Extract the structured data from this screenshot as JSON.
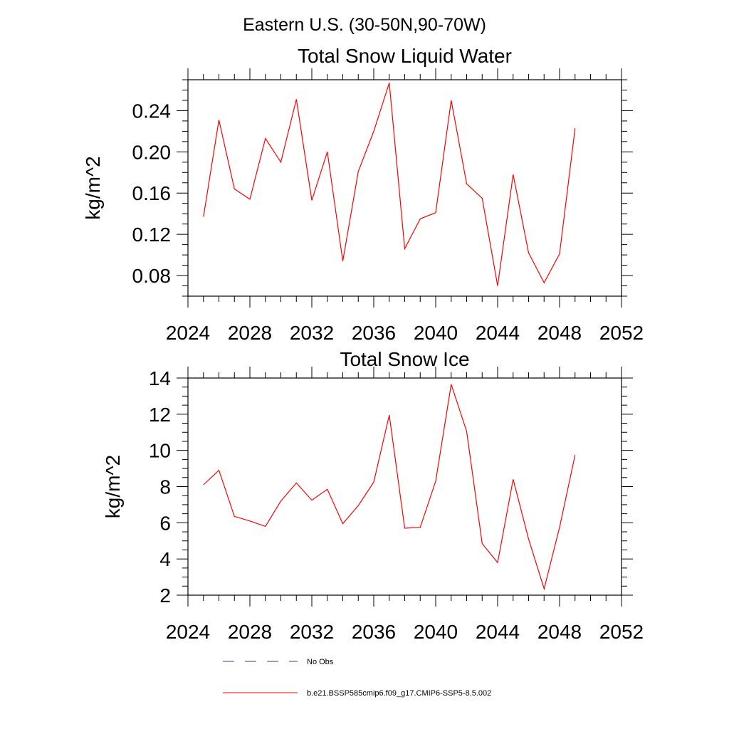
{
  "figure_title": "Eastern U.S. (30-50N,90-70W)",
  "chart_data": [
    {
      "type": "line",
      "title": "Total Snow Liquid Water",
      "xlabel": "",
      "ylabel": "kg/m^2",
      "xlim": [
        2024,
        2052
      ],
      "ylim": [
        0.06,
        0.27
      ],
      "xticks": [
        2024,
        2028,
        2032,
        2036,
        2040,
        2044,
        2048,
        2052
      ],
      "xtick_labels": [
        "2024",
        "2028",
        "2032",
        "2036",
        "2040",
        "2044",
        "2048",
        "2052"
      ],
      "yticks": [
        0.08,
        0.12,
        0.16,
        0.2,
        0.24
      ],
      "ytick_labels": [
        "0.08",
        "0.12",
        "0.16",
        "0.20",
        "0.24"
      ],
      "x": [
        2025,
        2026,
        2027,
        2028,
        2029,
        2030,
        2031,
        2032,
        2033,
        2034,
        2035,
        2036,
        2037,
        2038,
        2039,
        2040,
        2041,
        2042,
        2043,
        2044,
        2045,
        2046,
        2047,
        2048,
        2049
      ],
      "series": [
        {
          "name": "b.e21.BSSP585cmip6.f09_g17.CMIP6-SSP5-8.5.002",
          "color": "#ff0000",
          "values": [
            0.137,
            0.231,
            0.164,
            0.154,
            0.213,
            0.19,
            0.251,
            0.153,
            0.2,
            0.094,
            0.181,
            0.22,
            0.267,
            0.106,
            0.135,
            0.141,
            0.25,
            0.169,
            0.155,
            0.07,
            0.178,
            0.102,
            0.073,
            0.101,
            0.223
          ]
        }
      ]
    },
    {
      "type": "line",
      "title": "Total Snow Ice",
      "xlabel": "",
      "ylabel": "kg/m^2",
      "xlim": [
        2024,
        2052
      ],
      "ylim": [
        2,
        14
      ],
      "xticks": [
        2024,
        2028,
        2032,
        2036,
        2040,
        2044,
        2048,
        2052
      ],
      "xtick_labels": [
        "2024",
        "2028",
        "2032",
        "2036",
        "2040",
        "2044",
        "2048",
        "2052"
      ],
      "yticks": [
        2,
        4,
        6,
        8,
        10,
        12,
        14
      ],
      "ytick_labels": [
        "2",
        "4",
        "6",
        "8",
        "10",
        "12",
        "14"
      ],
      "x": [
        2025,
        2026,
        2027,
        2028,
        2029,
        2030,
        2031,
        2032,
        2033,
        2034,
        2035,
        2036,
        2037,
        2038,
        2039,
        2040,
        2041,
        2042,
        2043,
        2044,
        2045,
        2046,
        2047,
        2048,
        2049
      ],
      "series": [
        {
          "name": "b.e21.BSSP585cmip6.f09_g17.CMIP6-SSP5-8.5.002",
          "color": "#ff0000",
          "values": [
            8.1,
            8.9,
            6.35,
            6.1,
            5.8,
            7.2,
            8.2,
            7.25,
            7.85,
            5.95,
            6.95,
            8.25,
            11.95,
            5.7,
            5.75,
            8.3,
            13.65,
            11.05,
            4.85,
            3.8,
            8.4,
            5.1,
            2.35,
            5.75,
            9.75
          ]
        }
      ]
    }
  ],
  "legend": {
    "placement": "bottom-left",
    "items": [
      {
        "label": "No Obs",
        "style": "dashed",
        "color": "#3c3c78"
      },
      {
        "label": "b.e21.BSSP585cmip6.f09_g17.CMIP6-SSP5-8.5.002",
        "style": "solid",
        "color": "#ff0000"
      }
    ]
  }
}
